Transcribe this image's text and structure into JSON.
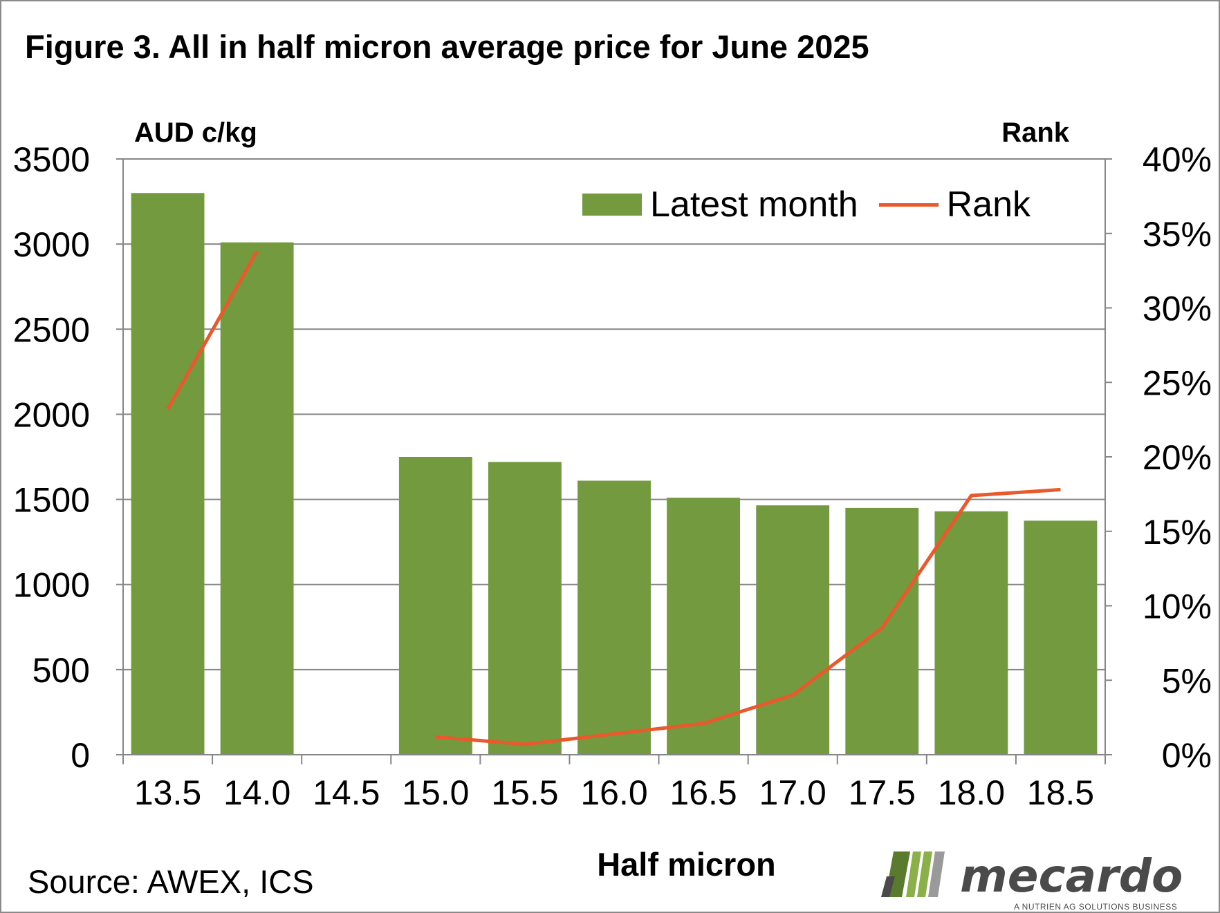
{
  "title": "Figure 3. All in half micron average price for June 2025",
  "source": "Source: AWEX, ICS",
  "logo": {
    "name": "mecardo",
    "tagline": "A NUTRIEN AG SOLUTIONS BUSINESS",
    "colors": [
      "#5a7a2e",
      "#8bb04a",
      "#9a9a9a",
      "#4a4a4a"
    ]
  },
  "chart_data": {
    "type": "bar",
    "title": "Figure 3. All in half micron average price for June 2025",
    "xlabel": "Half micron",
    "ylabel": "AUD c/kg",
    "y2label": "Rank",
    "categories": [
      "13.5",
      "14.0",
      "14.5",
      "15.0",
      "15.5",
      "16.0",
      "16.5",
      "17.0",
      "17.5",
      "18.0",
      "18.5"
    ],
    "ylim": [
      0,
      3500
    ],
    "yticks": [
      0,
      500,
      1000,
      1500,
      2000,
      2500,
      3000,
      3500
    ],
    "y2lim": [
      0,
      40
    ],
    "y2ticks": [
      "0%",
      "5%",
      "10%",
      "15%",
      "20%",
      "25%",
      "30%",
      "35%",
      "40%"
    ],
    "grid": true,
    "legend_position": "top-right",
    "series": [
      {
        "name": "Latest month",
        "type": "bar",
        "axis": "left",
        "color": "#739a3e",
        "values": [
          3300,
          3010,
          null,
          1750,
          1720,
          1610,
          1510,
          1465,
          1450,
          1430,
          1375
        ]
      },
      {
        "name": "Rank",
        "type": "line",
        "axis": "right",
        "color": "#e8592b",
        "unit": "%",
        "values": [
          23.2,
          33.8,
          null,
          1.2,
          0.7,
          1.4,
          2.1,
          4.0,
          8.5,
          17.4,
          17.8
        ]
      }
    ]
  }
}
